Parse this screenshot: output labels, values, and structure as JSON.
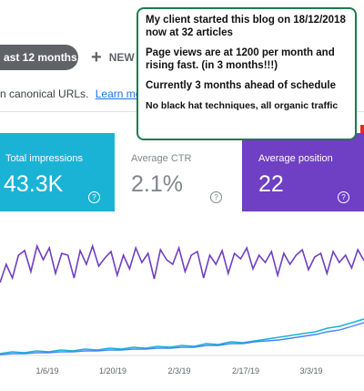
{
  "toolbar": {
    "date_chip_label": "ast 12 months",
    "new_button_label": "NEW"
  },
  "notice": {
    "text": "n canonical URLs.",
    "learn_more": "Learn more"
  },
  "cards": {
    "impressions": {
      "label": "Total impressions",
      "value": "43.3K",
      "color": "#1ab3d6"
    },
    "ctr": {
      "label": "Average CTR",
      "value": "2.1%"
    },
    "position": {
      "label": "Average position",
      "value": "22",
      "color": "#6f3fc4"
    }
  },
  "annotation": {
    "line1": "My client started this blog on 18/12/2018",
    "line2": "now at 32 articles",
    "line3": "Page views are at 1200 per month and",
    "line4": "rising fast. (in 3 months!!!)",
    "line5": "Currently 3 months ahead of schedule",
    "line6": "No black hat techniques, all organic traffic"
  },
  "chart_data": {
    "type": "line",
    "x_ticks": [
      "1/6/19",
      "1/20/19",
      "2/3/19",
      "2/17/19",
      "3/3/19"
    ],
    "colors": {
      "position": "#6f3fc4",
      "impressions": "#1ab3d6",
      "clicks": "#4285f4"
    },
    "position_trend": [
      60,
      40,
      55,
      30,
      25,
      48,
      20,
      35,
      22,
      50,
      28,
      30,
      55,
      25,
      40,
      20,
      42,
      33,
      26,
      52,
      30,
      45,
      22,
      38,
      28,
      56,
      24,
      35,
      40,
      22,
      48,
      30,
      26,
      55,
      30,
      40,
      25,
      50,
      28,
      34,
      22,
      45,
      30,
      38,
      26,
      52,
      28,
      40,
      30,
      24,
      46,
      32,
      28,
      50,
      26,
      38,
      30,
      44,
      24,
      36
    ],
    "impressions_trend": [
      138,
      136,
      137,
      135,
      136,
      134,
      135,
      133,
      134,
      132,
      133,
      131,
      132,
      130,
      131,
      129,
      130,
      127,
      128,
      125,
      126,
      124,
      122,
      120,
      118,
      116,
      114,
      110,
      108,
      104,
      100
    ],
    "clicks_trend": [
      139,
      138,
      138,
      137,
      137,
      136,
      136,
      135,
      135,
      134,
      134,
      133,
      133,
      132,
      132,
      131,
      131,
      129,
      129,
      127,
      127,
      125,
      124,
      123,
      121,
      119,
      117,
      114,
      112,
      108,
      104
    ]
  }
}
